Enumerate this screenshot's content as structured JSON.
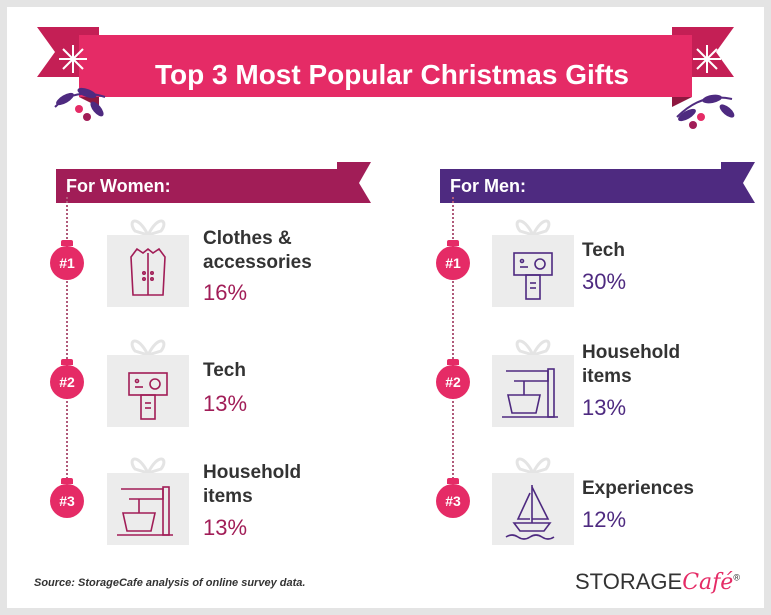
{
  "title": "Top 3 Most Popular Christmas Gifts",
  "women": {
    "header": "For Women:",
    "items": [
      {
        "rank": "#1",
        "name_line1": "Clothes &",
        "name_line2": "accessories",
        "pct": "16%",
        "icon": "coat-icon"
      },
      {
        "rank": "#2",
        "name_line1": "Tech",
        "name_line2": "",
        "pct": "13%",
        "icon": "tech-device-icon"
      },
      {
        "rank": "#3",
        "name_line1": "Household",
        "name_line2": "items",
        "pct": "13%",
        "icon": "mixer-icon"
      }
    ]
  },
  "men": {
    "header": "For Men:",
    "items": [
      {
        "rank": "#1",
        "name_line1": "Tech",
        "name_line2": "",
        "pct": "30%",
        "icon": "tech-device-icon"
      },
      {
        "rank": "#2",
        "name_line1": "Household",
        "name_line2": "items",
        "pct": "13%",
        "icon": "mixer-icon"
      },
      {
        "rank": "#3",
        "name_line1": "Experiences",
        "name_line2": "",
        "pct": "12%",
        "icon": "sailboat-icon"
      }
    ]
  },
  "source": "Source: StorageCafe analysis of online survey data.",
  "brand": {
    "part1": "STORAGE",
    "part2": "Café",
    "mark": "®"
  },
  "colors": {
    "banner": "#e52b66",
    "women": "#a11d57",
    "men": "#4e2a80",
    "ornament": "#e52b66"
  }
}
